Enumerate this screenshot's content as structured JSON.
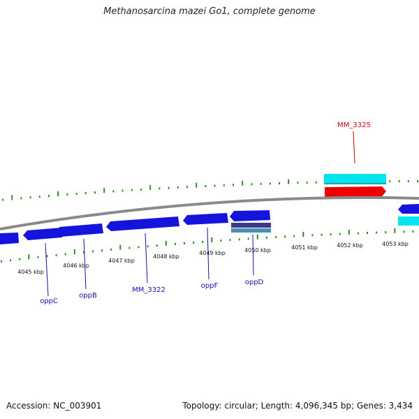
{
  "title": "Methanosarcina mazei Go1, complete genome",
  "footer": {
    "accession": "Accession: NC_003901",
    "info": "Topology: circular; Length: 4,096,345 bp; Genes: 3,434"
  },
  "colors": {
    "backbone": "#8a8a8a",
    "tick": "#2e8b22",
    "gene_forward": "#1414dd",
    "gene_blue_label": "#1010aa",
    "cds_highlight": "#00e5ee",
    "gene_red": "#ee0000",
    "label_red": "#cc0000",
    "dark_band": "#3d3a88",
    "steel_band": "#4a8fb8"
  },
  "ticks": [
    {
      "label": "4045 kbp"
    },
    {
      "label": "4046 kbp"
    },
    {
      "label": "4047 kbp"
    },
    {
      "label": "4048 kbp"
    },
    {
      "label": "4049 kbp"
    },
    {
      "label": "4050 kbp"
    },
    {
      "label": "4051 kbp"
    },
    {
      "label": "4052 kbp"
    },
    {
      "label": "4053 kbp"
    }
  ],
  "gene_labels": [
    {
      "name": "oppC",
      "color": "blue"
    },
    {
      "name": "oppB",
      "color": "blue"
    },
    {
      "name": "MM_3322",
      "color": "blue"
    },
    {
      "name": "oppF",
      "color": "blue"
    },
    {
      "name": "oppD",
      "color": "blue"
    },
    {
      "name": "MM_3325",
      "color": "red"
    }
  ]
}
